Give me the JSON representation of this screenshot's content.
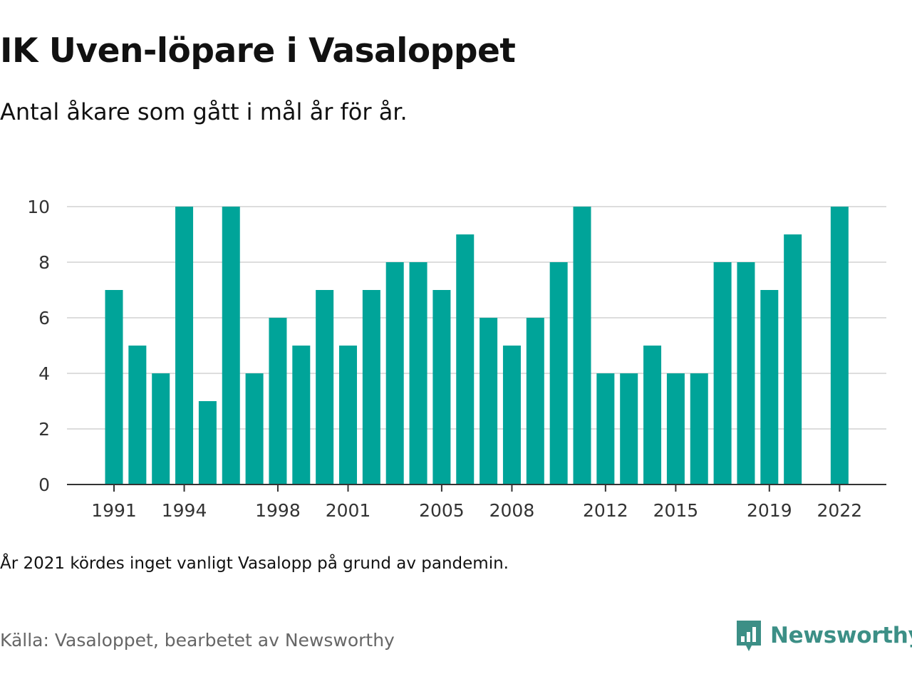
{
  "title": "IK Uven-löpare i Vasaloppet",
  "subtitle": "Antal åkare som gått i mål år för år.",
  "note": "År 2021 kördes inget vanligt Vasalopp på grund av pandemin.",
  "source": "Källa: Vasaloppet, bearbetet av Newsworthy",
  "logo_text": "Newsworthy",
  "colors": {
    "bar": "#00a499",
    "grid": "#dddddd",
    "axis": "#333333",
    "logo": "#3c8f86"
  },
  "chart_data": {
    "type": "bar",
    "title": "IK Uven-löpare i Vasaloppet",
    "subtitle": "Antal åkare som gått i mål år för år.",
    "xlabel": "",
    "ylabel": "",
    "ylim": [
      0,
      10
    ],
    "yticks": [
      0,
      2,
      4,
      6,
      8,
      10
    ],
    "xtick_labels": [
      "1991",
      "1994",
      "1998",
      "2001",
      "2005",
      "2008",
      "2012",
      "2015",
      "2019",
      "2022"
    ],
    "grid": true,
    "legend": "none",
    "categories": [
      "1991",
      "1992",
      "1993",
      "1994",
      "1995",
      "1996",
      "1997",
      "1998",
      "1999",
      "2000",
      "2001",
      "2002",
      "2003",
      "2004",
      "2005",
      "2006",
      "2007",
      "2008",
      "2009",
      "2010",
      "2011",
      "2012",
      "2013",
      "2014",
      "2015",
      "2016",
      "2017",
      "2018",
      "2019",
      "2020",
      "2021",
      "2022"
    ],
    "values": [
      7,
      5,
      4,
      10,
      3,
      10,
      4,
      6,
      5,
      7,
      5,
      7,
      8,
      8,
      7,
      9,
      6,
      5,
      6,
      8,
      10,
      4,
      4,
      5,
      4,
      4,
      8,
      8,
      7,
      9,
      null,
      10
    ]
  }
}
